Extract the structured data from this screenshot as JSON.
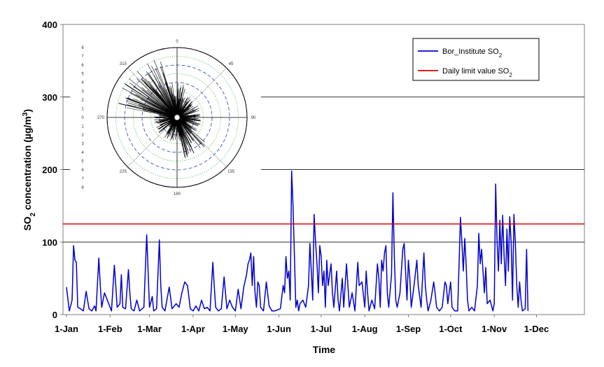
{
  "chart_data": [
    {
      "type": "line",
      "xlabel": "Time",
      "ylabel_main": "SO",
      "ylabel_sub": "2",
      "ylabel_rest": " concentration (µg/m",
      "ylabel_sup": "3",
      "ylabel_end": ")",
      "ylim": [
        0,
        400
      ],
      "yticks": [
        0,
        100,
        200,
        300,
        400
      ],
      "gridlines_y": [
        100,
        200,
        300
      ],
      "x_start": "1-Jan",
      "x_days": 365,
      "xticks": [
        {
          "label": "1-Jan",
          "day": 0
        },
        {
          "label": "1-Feb",
          "day": 31
        },
        {
          "label": "1-Mar",
          "day": 59
        },
        {
          "label": "1-Apr",
          "day": 90
        },
        {
          "label": "1-May",
          "day": 120
        },
        {
          "label": "1-Jun",
          "day": 151
        },
        {
          "label": "1-Jul",
          "day": 181
        },
        {
          "label": "1-Aug",
          "day": 212
        },
        {
          "label": "1-Sep",
          "day": 243
        },
        {
          "label": "1-Oct",
          "day": 273
        },
        {
          "label": "1-Nov",
          "day": 304
        },
        {
          "label": "1-Dec",
          "day": 334
        }
      ],
      "legend": [
        {
          "name": "Bor_Institute SO",
          "sub": "2",
          "color": "#0000cc"
        },
        {
          "name": "Daily limit value SO",
          "sub": "2",
          "color": "#dd0000"
        }
      ],
      "legend_position": "top-right",
      "series": [
        {
          "name": "Bor_Institute SO2",
          "color": "#0000cc",
          "points": [
            [
              0,
              38
            ],
            [
              2,
              5
            ],
            [
              4,
              20
            ],
            [
              5,
              95
            ],
            [
              6,
              75
            ],
            [
              7,
              72
            ],
            [
              8,
              10
            ],
            [
              10,
              8
            ],
            [
              12,
              5
            ],
            [
              14,
              32
            ],
            [
              16,
              8
            ],
            [
              18,
              5
            ],
            [
              20,
              12
            ],
            [
              21,
              5
            ],
            [
              23,
              78
            ],
            [
              24,
              40
            ],
            [
              25,
              10
            ],
            [
              27,
              30
            ],
            [
              29,
              20
            ],
            [
              31,
              10
            ],
            [
              32,
              5
            ],
            [
              34,
              68
            ],
            [
              35,
              40
            ],
            [
              36,
              10
            ],
            [
              38,
              15
            ],
            [
              39,
              55
            ],
            [
              40,
              10
            ],
            [
              42,
              8
            ],
            [
              44,
              62
            ],
            [
              45,
              30
            ],
            [
              46,
              8
            ],
            [
              48,
              5
            ],
            [
              50,
              20
            ],
            [
              52,
              5
            ],
            [
              55,
              10
            ],
            [
              57,
              110
            ],
            [
              58,
              60
            ],
            [
              59,
              10
            ],
            [
              61,
              25
            ],
            [
              62,
              5
            ],
            [
              64,
              8
            ],
            [
              66,
              103
            ],
            [
              67,
              40
            ],
            [
              68,
              10
            ],
            [
              70,
              5
            ],
            [
              73,
              38
            ],
            [
              75,
              8
            ],
            [
              78,
              15
            ],
            [
              80,
              10
            ],
            [
              82,
              30
            ],
            [
              84,
              45
            ],
            [
              86,
              40
            ],
            [
              88,
              8
            ],
            [
              90,
              5
            ],
            [
              92,
              12
            ],
            [
              94,
              5
            ],
            [
              96,
              20
            ],
            [
              98,
              8
            ],
            [
              100,
              10
            ],
            [
              102,
              5
            ],
            [
              104,
              72
            ],
            [
              105,
              40
            ],
            [
              106,
              10
            ],
            [
              108,
              5
            ],
            [
              110,
              8
            ],
            [
              112,
              52
            ],
            [
              113,
              30
            ],
            [
              114,
              8
            ],
            [
              116,
              20
            ],
            [
              118,
              10
            ],
            [
              120,
              5
            ],
            [
              122,
              35
            ],
            [
              124,
              8
            ],
            [
              126,
              38
            ],
            [
              128,
              55
            ],
            [
              129,
              70
            ],
            [
              130,
              75
            ],
            [
              131,
              85
            ],
            [
              132,
              40
            ],
            [
              133,
              80
            ],
            [
              134,
              30
            ],
            [
              135,
              10
            ],
            [
              136,
              45
            ],
            [
              137,
              40
            ],
            [
              138,
              10
            ],
            [
              140,
              5
            ],
            [
              142,
              45
            ],
            [
              144,
              12
            ],
            [
              146,
              5
            ],
            [
              148,
              5
            ],
            [
              152,
              8
            ],
            [
              154,
              40
            ],
            [
              155,
              30
            ],
            [
              156,
              80
            ],
            [
              157,
              50
            ],
            [
              158,
              60
            ],
            [
              159,
              20
            ],
            [
              160,
              198
            ],
            [
              161,
              150
            ],
            [
              162,
              80
            ],
            [
              163,
              10
            ],
            [
              164,
              20
            ],
            [
              165,
              5
            ],
            [
              166,
              15
            ],
            [
              168,
              20
            ],
            [
              170,
              10
            ],
            [
              172,
              40
            ],
            [
              173,
              98
            ],
            [
              174,
              60
            ],
            [
              175,
              20
            ],
            [
              176,
              138
            ],
            [
              177,
              100
            ],
            [
              178,
              70
            ],
            [
              179,
              30
            ],
            [
              180,
              95
            ],
            [
              181,
              80
            ],
            [
              182,
              40
            ],
            [
              183,
              60
            ],
            [
              184,
              10
            ],
            [
              185,
              75
            ],
            [
              186,
              40
            ],
            [
              188,
              70
            ],
            [
              189,
              30
            ],
            [
              190,
              10
            ],
            [
              192,
              60
            ],
            [
              193,
              20
            ],
            [
              194,
              5
            ],
            [
              196,
              50
            ],
            [
              197,
              10
            ],
            [
              199,
              70
            ],
            [
              200,
              40
            ],
            [
              201,
              10
            ],
            [
              203,
              30
            ],
            [
              205,
              5
            ],
            [
              207,
              72
            ],
            [
              208,
              40
            ],
            [
              210,
              45
            ],
            [
              212,
              10
            ],
            [
              213,
              60
            ],
            [
              214,
              30
            ],
            [
              215,
              5
            ],
            [
              217,
              20
            ],
            [
              219,
              8
            ],
            [
              221,
              70
            ],
            [
              222,
              50
            ],
            [
              223,
              10
            ],
            [
              224,
              75
            ],
            [
              225,
              60
            ],
            [
              226,
              85
            ],
            [
              227,
              95
            ],
            [
              228,
              30
            ],
            [
              229,
              10
            ],
            [
              231,
              55
            ],
            [
              232,
              168
            ],
            [
              233,
              80
            ],
            [
              234,
              20
            ],
            [
              235,
              10
            ],
            [
              237,
              30
            ],
            [
              239,
              90
            ],
            [
              240,
              98
            ],
            [
              241,
              60
            ],
            [
              242,
              20
            ],
            [
              243,
              75
            ],
            [
              244,
              50
            ],
            [
              245,
              10
            ],
            [
              247,
              40
            ],
            [
              249,
              75
            ],
            [
              250,
              40
            ],
            [
              252,
              10
            ],
            [
              254,
              85
            ],
            [
              255,
              40
            ],
            [
              256,
              20
            ],
            [
              257,
              5
            ],
            [
              259,
              20
            ],
            [
              261,
              45
            ],
            [
              262,
              30
            ],
            [
              263,
              10
            ],
            [
              265,
              5
            ],
            [
              267,
              10
            ],
            [
              269,
              45
            ],
            [
              270,
              40
            ],
            [
              271,
              15
            ],
            [
              273,
              45
            ],
            [
              274,
              10
            ],
            [
              276,
              5
            ],
            [
              278,
              5
            ],
            [
              280,
              134
            ],
            [
              281,
              100
            ],
            [
              282,
              60
            ],
            [
              283,
              105
            ],
            [
              284,
              70
            ],
            [
              285,
              20
            ],
            [
              286,
              5
            ],
            [
              288,
              10
            ],
            [
              290,
              5
            ],
            [
              292,
              40
            ],
            [
              293,
              112
            ],
            [
              294,
              70
            ],
            [
              295,
              90
            ],
            [
              296,
              60
            ],
            [
              297,
              30
            ],
            [
              298,
              65
            ],
            [
              299,
              15
            ],
            [
              301,
              20
            ],
            [
              303,
              5
            ],
            [
              304,
              15
            ],
            [
              305,
              180
            ],
            [
              306,
              100
            ],
            [
              307,
              60
            ],
            [
              308,
              130
            ],
            [
              309,
              70
            ],
            [
              310,
              137
            ],
            [
              311,
              80
            ],
            [
              312,
              40
            ],
            [
              313,
              118
            ],
            [
              314,
              60
            ],
            [
              315,
              135
            ],
            [
              316,
              100
            ],
            [
              317,
              20
            ],
            [
              318,
              138
            ],
            [
              319,
              100
            ],
            [
              320,
              40
            ],
            [
              321,
              10
            ],
            [
              322,
              45
            ],
            [
              323,
              20
            ],
            [
              324,
              5
            ],
            [
              326,
              8
            ],
            [
              327,
              90
            ],
            [
              328,
              5
            ]
          ]
        },
        {
          "name": "Daily limit value SO2",
          "color": "#dd0000",
          "constant": 125
        }
      ]
    },
    {
      "type": "polar",
      "angle_labels": [
        "0",
        "45",
        "90",
        "135",
        "180",
        "225",
        "270",
        "315"
      ],
      "radial_labels": [
        "8",
        "7",
        "6",
        "5",
        "4",
        "3",
        "2",
        "1",
        "0",
        "1",
        "2",
        "3",
        "4",
        "5",
        "6",
        "7",
        "8"
      ],
      "rmax": 8,
      "note": "wind rose of dominant directions (NW)"
    }
  ]
}
